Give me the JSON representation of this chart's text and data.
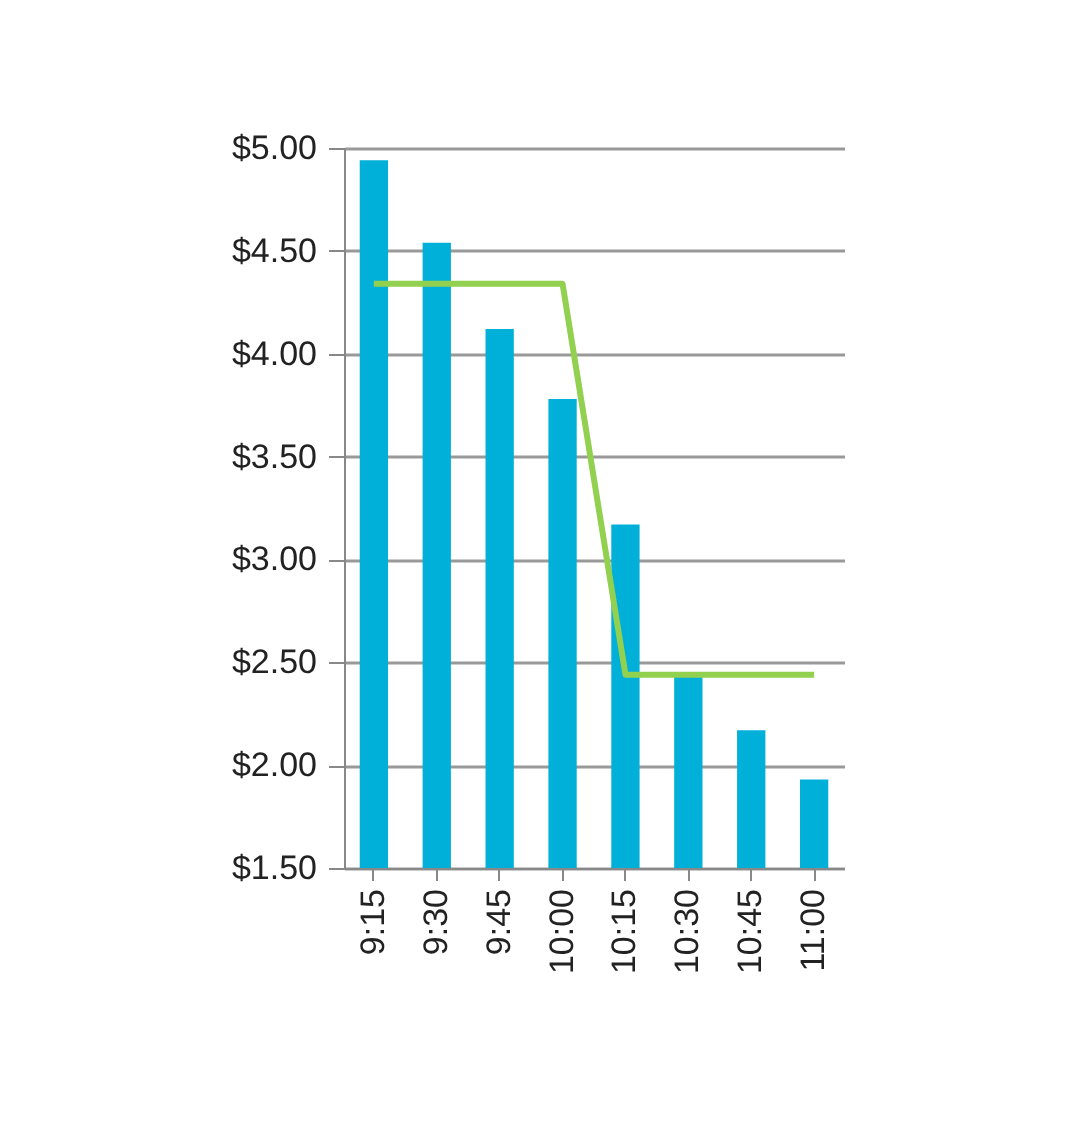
{
  "chart_data": {
    "type": "bar",
    "categories": [
      "9:15",
      "9:30",
      "9:45",
      "10:00",
      "10:15",
      "10:30",
      "10:45",
      "11:00"
    ],
    "series": [
      {
        "color": "#00b0d8",
        "values": [
          4.94,
          4.54,
          4.12,
          3.78,
          3.17,
          2.43,
          2.17,
          1.93
        ]
      },
      {
        "type": "line",
        "color": "#92d050",
        "values": [
          4.34,
          4.34,
          4.34,
          4.34,
          2.44,
          2.44,
          2.44,
          2.44
        ]
      }
    ],
    "ylim": [
      1.5,
      5
    ],
    "yticks": [
      {
        "value": 1.5,
        "label": "$1.50"
      },
      {
        "value": 2,
        "label": "$2.00"
      },
      {
        "value": 2.5,
        "label": "$2.50"
      },
      {
        "value": 3,
        "label": "$3.00"
      },
      {
        "value": 3.5,
        "label": "$3.50"
      },
      {
        "value": 4,
        "label": "$4.00"
      },
      {
        "value": 4.5,
        "label": "$4.50"
      },
      {
        "value": 5,
        "label": "$5.00"
      }
    ],
    "grid": "y",
    "marker": "none",
    "line_style": "solid"
  }
}
